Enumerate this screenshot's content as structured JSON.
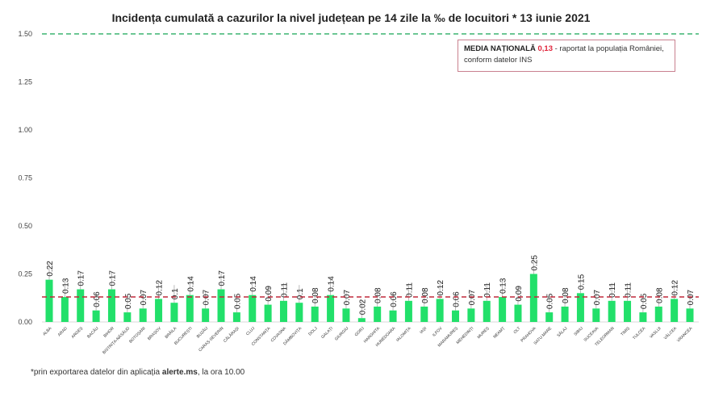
{
  "chart_data": {
    "type": "bar",
    "title": "Incidența cumulată a cazurilor la nivel județean pe 14 zile la ‰ de locuitori *  13 iunie 2021",
    "xlabel": "",
    "ylabel": "",
    "ylim": [
      0,
      1.5
    ],
    "yticks": [
      "0.00",
      "0.25",
      "0.50",
      "0.75",
      "1.00",
      "1.25",
      "1.50"
    ],
    "categories": [
      "ALBA",
      "ARAD",
      "ARGEȘ",
      "BACĂU",
      "BIHOR",
      "BISTRIȚA-NĂSĂUD",
      "BOTOȘANI",
      "BRAȘOV",
      "BRĂILA",
      "BUCUREȘTI",
      "BUZĂU",
      "CARAȘ-SEVERIN",
      "CĂLĂRAȘI",
      "CLUJ",
      "CONSTANȚA",
      "COVASNA",
      "DÂMBOVIȚA",
      "DOLJ",
      "GALAȚI",
      "GIURGIU",
      "GORJ",
      "HARGHITA",
      "HUNEDOARA",
      "IALOMIȚA",
      "IAȘI",
      "ILFOV",
      "MARAMUREȘ",
      "MEHEDINȚI",
      "MUREȘ",
      "NEAMȚ",
      "OLT",
      "PRAHOVA",
      "SATU MARE",
      "SĂLAJ",
      "SIBIU",
      "SUCEAVA",
      "TELEORMAN",
      "TIMIȘ",
      "TULCEA",
      "VASLUI",
      "VÂLCEA",
      "VRANCEA"
    ],
    "values": [
      0.22,
      0.13,
      0.17,
      0.06,
      0.17,
      0.05,
      0.07,
      0.12,
      0.1,
      0.14,
      0.07,
      0.17,
      0.05,
      0.14,
      0.09,
      0.11,
      0.1,
      0.08,
      0.14,
      0.07,
      0.02,
      0.08,
      0.06,
      0.11,
      0.08,
      0.12,
      0.06,
      0.07,
      0.11,
      0.13,
      0.09,
      0.25,
      0.05,
      0.08,
      0.15,
      0.07,
      0.11,
      0.11,
      0.05,
      0.08,
      0.12,
      0.07
    ],
    "reference_lines": [
      {
        "name": "media_nationala",
        "value": 0.13,
        "color": "#c0283a",
        "style": "dashed"
      },
      {
        "name": "threshold",
        "value": 1.5,
        "color": "#3cb371",
        "style": "dashed"
      }
    ],
    "bar_color": "#22e06a",
    "grid": false
  },
  "legend": {
    "label": "MEDIA NAȚIONALĂ",
    "value": "0,13",
    "text": " - raportat la populația României,",
    "text2": "conform datelor INS"
  },
  "footnote": {
    "prefix": "*prin exportarea datelor din aplicația ",
    "bold": "alerte.ms",
    "suffix": ", la ora 10.00"
  }
}
